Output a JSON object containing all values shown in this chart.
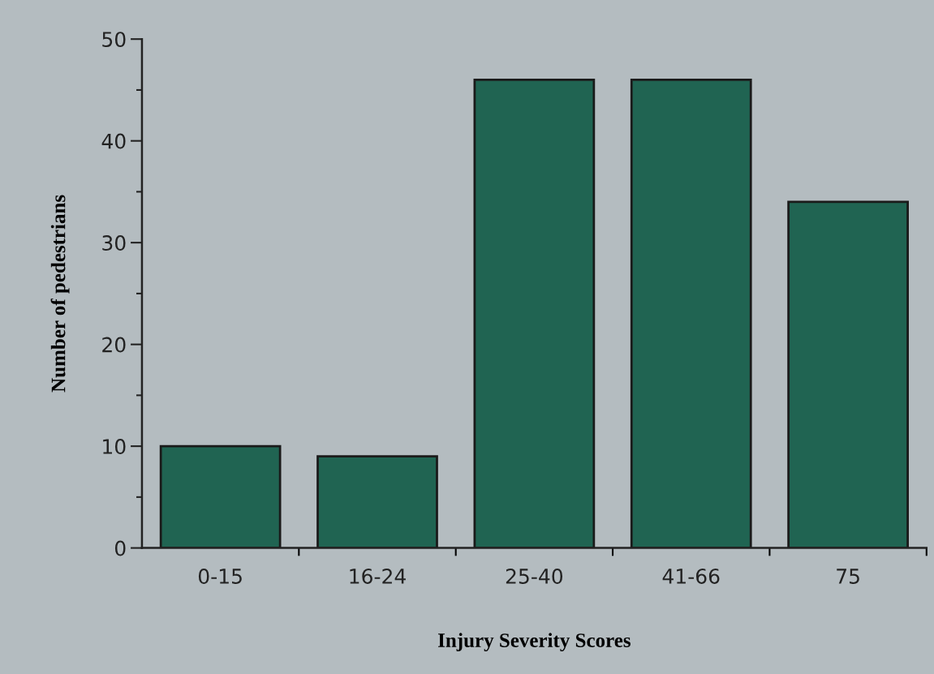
{
  "chart_data": {
    "type": "bar",
    "xlabel": "Injury Severity Scores",
    "ylabel": "Number of pedestrians",
    "categories": [
      "0-15",
      "16-24",
      "25-40",
      "41-66",
      "75"
    ],
    "values": [
      10,
      9,
      46,
      46,
      34
    ],
    "color": "#206452",
    "ylim": [
      0,
      50
    ],
    "yticks": [
      0,
      {
        "value": 5,
        "label": null
      },
      10,
      {
        "value": 15,
        "label": null
      },
      20,
      {
        "value": 25,
        "label": null
      },
      30,
      {
        "value": 35,
        "label": null
      },
      40,
      {
        "value": 45,
        "label": null
      },
      50
    ],
    "grid": false
  }
}
